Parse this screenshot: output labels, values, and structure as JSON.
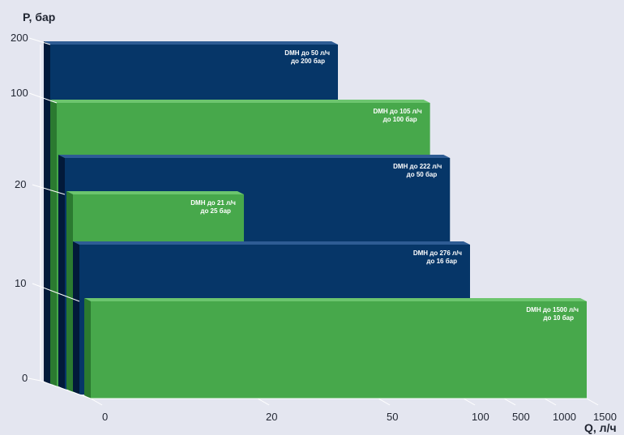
{
  "colors": {
    "background": "#e4e6f0",
    "blue_front": "#063668",
    "blue_top": "#2e5c94",
    "blue_side": "#021a3a",
    "green_front": "#47a84b",
    "green_top": "#6cc56e",
    "green_side": "#2b7a30",
    "axis": "#ffffff"
  },
  "chart_data": {
    "type": "bar",
    "chart_style": "3d-stepped-area",
    "xlabel": "Q, л/ч",
    "ylabel": "P, бар",
    "x_ticks": [
      "0",
      "20",
      "50",
      "100",
      "500",
      "1000",
      "1500"
    ],
    "y_ticks": [
      "0",
      "10",
      "20",
      "100",
      "200"
    ],
    "x_scale": "non-linear",
    "y_scale": "non-linear",
    "series": [
      {
        "flow_max_l_h": 50,
        "pressure_max_bar": 200,
        "color": "blue",
        "label_line1": "DMH  до 50 л/ч",
        "label_line2": "до 200 бар"
      },
      {
        "flow_max_l_h": 105,
        "pressure_max_bar": 100,
        "color": "green",
        "label_line1": "DMH  до 105 л/ч",
        "label_line2": "до 100 бар"
      },
      {
        "flow_max_l_h": 222,
        "pressure_max_bar": 50,
        "color": "blue",
        "label_line1": "DMH  до 222 л/ч",
        "label_line2": "до 50 бар"
      },
      {
        "flow_max_l_h": 21,
        "pressure_max_bar": 25,
        "color": "green",
        "label_line1": "DMH  до 21 л/ч",
        "label_line2": "до 25 бар"
      },
      {
        "flow_max_l_h": 276,
        "pressure_max_bar": 16,
        "color": "blue",
        "label_line1": "DMH  до 276 л/ч",
        "label_line2": "до 16 бар"
      },
      {
        "flow_max_l_h": 1500,
        "pressure_max_bar": 10,
        "color": "green",
        "label_line1": "DMH  до 1500 л/ч",
        "label_line2": "до 10 бар"
      }
    ],
    "grid": false,
    "legend": "none"
  }
}
